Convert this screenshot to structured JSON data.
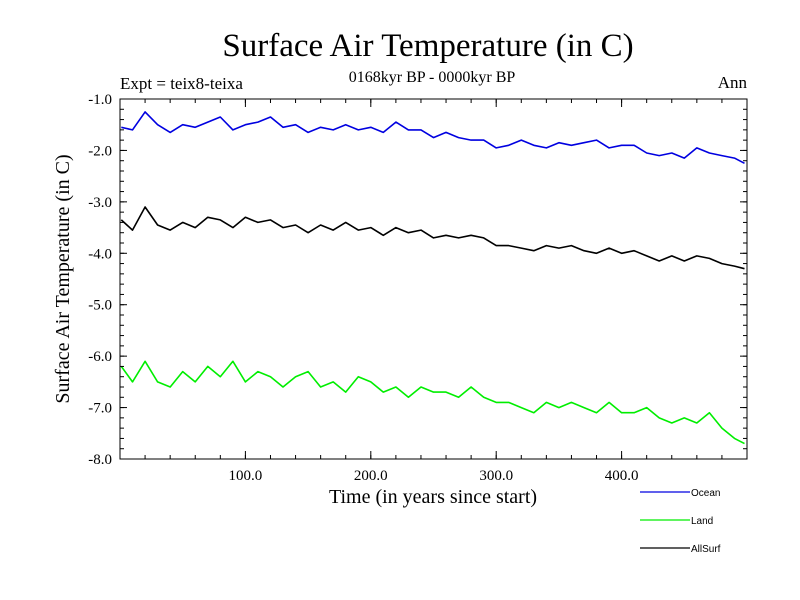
{
  "chart_data": {
    "type": "line",
    "title": "Surface Air Temperature (in C)",
    "subtitle": "0168kyr BP - 0000kyr BP",
    "left_note": "Expt = teix8-teixa",
    "right_note": "Ann",
    "xlabel": "Time (in years since start)",
    "ylabel": "Surface Air Temperature (in C)",
    "xlim": [
      0,
      500
    ],
    "ylim": [
      -8.0,
      -1.0
    ],
    "xticks": [
      100,
      200,
      300,
      400
    ],
    "xtick_labels": [
      "100.0",
      "200.0",
      "300.0",
      "400.0"
    ],
    "yticks": [
      -1.0,
      -2.0,
      -3.0,
      -4.0,
      -5.0,
      -6.0,
      -7.0,
      -8.0
    ],
    "ytick_labels": [
      "-1.0",
      "-2.0",
      "-3.0",
      "-4.0",
      "-5.0",
      "-6.0",
      "-7.0",
      "-8.0"
    ],
    "grid": false,
    "legend_position": "bottom-right",
    "series": [
      {
        "name": "Ocean",
        "color": "#0000e0",
        "x": [
          1,
          10,
          20,
          30,
          40,
          50,
          60,
          70,
          80,
          90,
          100,
          110,
          120,
          130,
          140,
          150,
          160,
          170,
          180,
          190,
          200,
          210,
          220,
          230,
          240,
          250,
          260,
          270,
          280,
          290,
          300,
          310,
          320,
          330,
          340,
          350,
          360,
          370,
          380,
          390,
          400,
          410,
          420,
          430,
          440,
          450,
          460,
          470,
          480,
          490,
          498
        ],
        "y": [
          -1.55,
          -1.6,
          -1.25,
          -1.5,
          -1.65,
          -1.5,
          -1.55,
          -1.45,
          -1.35,
          -1.6,
          -1.5,
          -1.45,
          -1.35,
          -1.55,
          -1.5,
          -1.65,
          -1.55,
          -1.6,
          -1.5,
          -1.6,
          -1.55,
          -1.65,
          -1.45,
          -1.6,
          -1.6,
          -1.75,
          -1.65,
          -1.75,
          -1.8,
          -1.8,
          -1.95,
          -1.9,
          -1.8,
          -1.9,
          -1.95,
          -1.85,
          -1.9,
          -1.85,
          -1.8,
          -1.95,
          -1.9,
          -1.9,
          -2.05,
          -2.1,
          -2.05,
          -2.15,
          -1.95,
          -2.05,
          -2.1,
          -2.15,
          -2.25
        ]
      },
      {
        "name": "Land",
        "color": "#00ee00",
        "x": [
          1,
          10,
          20,
          30,
          40,
          50,
          60,
          70,
          80,
          90,
          100,
          110,
          120,
          130,
          140,
          150,
          160,
          170,
          180,
          190,
          200,
          210,
          220,
          230,
          240,
          250,
          260,
          270,
          280,
          290,
          300,
          310,
          320,
          330,
          340,
          350,
          360,
          370,
          380,
          390,
          400,
          410,
          420,
          430,
          440,
          450,
          460,
          470,
          480,
          490,
          498
        ],
        "y": [
          -6.2,
          -6.5,
          -6.1,
          -6.5,
          -6.6,
          -6.3,
          -6.5,
          -6.2,
          -6.4,
          -6.1,
          -6.5,
          -6.3,
          -6.4,
          -6.6,
          -6.4,
          -6.3,
          -6.6,
          -6.5,
          -6.7,
          -6.4,
          -6.5,
          -6.7,
          -6.6,
          -6.8,
          -6.6,
          -6.7,
          -6.7,
          -6.8,
          -6.6,
          -6.8,
          -6.9,
          -6.9,
          -7.0,
          -7.1,
          -6.9,
          -7.0,
          -6.9,
          -7.0,
          -7.1,
          -6.9,
          -7.1,
          -7.1,
          -7.0,
          -7.2,
          -7.3,
          -7.2,
          -7.3,
          -7.1,
          -7.4,
          -7.6,
          -7.7
        ]
      },
      {
        "name": "AllSurf",
        "color": "#000000",
        "x": [
          1,
          10,
          20,
          30,
          40,
          50,
          60,
          70,
          80,
          90,
          100,
          110,
          120,
          130,
          140,
          150,
          160,
          170,
          180,
          190,
          200,
          210,
          220,
          230,
          240,
          250,
          260,
          270,
          280,
          290,
          300,
          310,
          320,
          330,
          340,
          350,
          360,
          370,
          380,
          390,
          400,
          410,
          420,
          430,
          440,
          450,
          460,
          470,
          480,
          490,
          498
        ],
        "y": [
          -3.35,
          -3.55,
          -3.1,
          -3.45,
          -3.55,
          -3.4,
          -3.5,
          -3.3,
          -3.35,
          -3.5,
          -3.3,
          -3.4,
          -3.35,
          -3.5,
          -3.45,
          -3.6,
          -3.45,
          -3.55,
          -3.4,
          -3.55,
          -3.5,
          -3.65,
          -3.5,
          -3.6,
          -3.55,
          -3.7,
          -3.65,
          -3.7,
          -3.65,
          -3.7,
          -3.85,
          -3.85,
          -3.9,
          -3.95,
          -3.85,
          -3.9,
          -3.85,
          -3.95,
          -4.0,
          -3.9,
          -4.0,
          -3.95,
          -4.05,
          -4.15,
          -4.05,
          -4.15,
          -4.05,
          -4.1,
          -4.2,
          -4.25,
          -4.3
        ]
      }
    ]
  }
}
